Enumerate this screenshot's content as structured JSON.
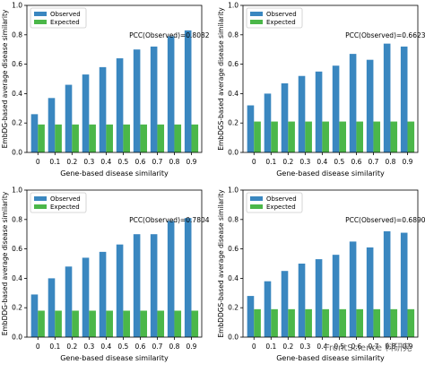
{
  "chart_data": [
    {
      "type": "bar",
      "categories": [
        "0",
        "0.1",
        "0.2",
        "0.3",
        "0.4",
        "0.5",
        "0.6",
        "0.7",
        "0.8",
        "0.9"
      ],
      "series": [
        {
          "name": "Observed",
          "color": "#3a87c0",
          "values": [
            0.26,
            0.37,
            0.46,
            0.53,
            0.58,
            0.64,
            0.7,
            0.72,
            0.79,
            0.83
          ]
        },
        {
          "name": "Expected",
          "color": "#4bb749",
          "values": [
            0.19,
            0.19,
            0.19,
            0.19,
            0.19,
            0.19,
            0.19,
            0.19,
            0.19,
            0.19
          ]
        }
      ],
      "annotation": "PCC(Observed)=0.8082",
      "xlabel": "Gene-based disease similarity",
      "ylabel": "EmbDG-based average disease similarity",
      "ylim": [
        0,
        1.0
      ],
      "yticks": [
        "0.0",
        "0.2",
        "0.4",
        "0.6",
        "0.8",
        "1.0"
      ],
      "legend": "top-left"
    },
    {
      "type": "bar",
      "categories": [
        "0",
        "0.1",
        "0.2",
        "0.3",
        "0.4",
        "0.5",
        "0.6",
        "0.7",
        "0.8",
        "0.9"
      ],
      "series": [
        {
          "name": "Observed",
          "color": "#3a87c0",
          "values": [
            0.32,
            0.4,
            0.47,
            0.52,
            0.55,
            0.59,
            0.67,
            0.63,
            0.74,
            0.72
          ]
        },
        {
          "name": "Expected",
          "color": "#4bb749",
          "values": [
            0.21,
            0.21,
            0.21,
            0.21,
            0.21,
            0.21,
            0.21,
            0.21,
            0.21,
            0.21
          ]
        }
      ],
      "annotation": "PCC(Observed)=0.6623",
      "xlabel": "Gene-based disease similarity",
      "ylabel": "EmbDGS-based average disease similarity",
      "ylim": [
        0,
        1.0
      ],
      "yticks": [
        "0.0",
        "0.2",
        "0.4",
        "0.6",
        "0.8",
        "1.0"
      ],
      "legend": "top-left"
    },
    {
      "type": "bar",
      "categories": [
        "0",
        "0.1",
        "0.2",
        "0.3",
        "0.4",
        "0.5",
        "0.6",
        "0.7",
        "0.8",
        "0.9"
      ],
      "series": [
        {
          "name": "Observed",
          "color": "#3a87c0",
          "values": [
            0.29,
            0.4,
            0.48,
            0.54,
            0.58,
            0.63,
            0.7,
            0.7,
            0.79,
            0.81
          ]
        },
        {
          "name": "Expected",
          "color": "#4bb749",
          "values": [
            0.18,
            0.18,
            0.18,
            0.18,
            0.18,
            0.18,
            0.18,
            0.18,
            0.18,
            0.18
          ]
        }
      ],
      "annotation": "PCC(Observed)=0.7804",
      "xlabel": "Gene-based disease similarity",
      "ylabel": "EmbDDG-based average disease similarity",
      "ylim": [
        0,
        1.0
      ],
      "yticks": [
        "0.0",
        "0.2",
        "0.4",
        "0.6",
        "0.8",
        "1.0"
      ],
      "legend": "top-left"
    },
    {
      "type": "bar",
      "categories": [
        "0",
        "0.1",
        "0.2",
        "0.3",
        "0.4",
        "0.5",
        "0.6",
        "0.7",
        "0.8",
        "0.9"
      ],
      "series": [
        {
          "name": "Observed",
          "color": "#3a87c0",
          "values": [
            0.28,
            0.38,
            0.45,
            0.5,
            0.53,
            0.56,
            0.65,
            0.61,
            0.72,
            0.71
          ]
        },
        {
          "name": "Expected",
          "color": "#4bb749",
          "values": [
            0.19,
            0.19,
            0.19,
            0.19,
            0.19,
            0.19,
            0.19,
            0.19,
            0.19,
            0.19
          ]
        }
      ],
      "annotation": "PCC(Observed)=0.6890",
      "xlabel": "Gene-based disease similarity",
      "ylabel": "EmbDDGS-based average disease similarity",
      "ylim": [
        0,
        1.0
      ],
      "yticks": [
        "0.0",
        "0.2",
        "0.4",
        "0.6",
        "0.8",
        "1.0"
      ],
      "legend": "top-left"
    }
  ],
  "watermark": "FrontScience 科研苑"
}
